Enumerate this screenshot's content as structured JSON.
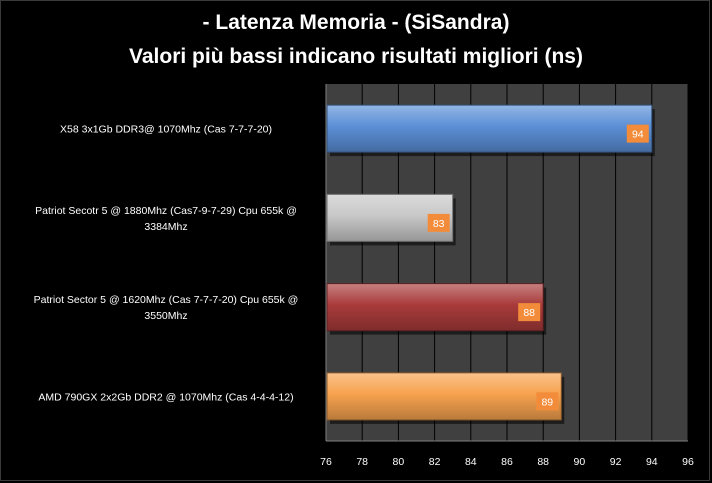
{
  "chart_data": {
    "type": "bar",
    "orientation": "horizontal",
    "title": "- Latenza Memoria -  (SiSandra)",
    "subtitle": "Valori più bassi indicano risultati migliori (ns)",
    "categories": [
      [
        "X58 3x1Gb DDR3@ 1070Mhz (Cas 7-7-7-20)"
      ],
      [
        "Patriot Secotr 5 @ 1880Mhz (Cas7-9-7-29) Cpu 655k @",
        "3384Mhz"
      ],
      [
        "Patriot Sector 5 @ 1620Mhz (Cas 7-7-7-20) Cpu 655k @",
        "3550Mhz"
      ],
      [
        "AMD 790GX 2x2Gb DDR2 @ 1070Mhz (Cas 4-4-4-12)"
      ]
    ],
    "values": [
      94,
      83,
      88,
      89
    ],
    "value_labels": [
      "94",
      "83",
      "88",
      "89"
    ],
    "colors": [
      "#5b8fd6",
      "#c8c8c8",
      "#a93b3b",
      "#f7a24e"
    ],
    "xlim": [
      76,
      96
    ],
    "xticks": [
      "76",
      "78",
      "80",
      "82",
      "84",
      "86",
      "88",
      "90",
      "92",
      "94",
      "96"
    ],
    "grid": "vertical",
    "legend": "none",
    "plot_background": "#404040",
    "gridline_color": "#000000",
    "label_box_color": "#f28c3a"
  }
}
